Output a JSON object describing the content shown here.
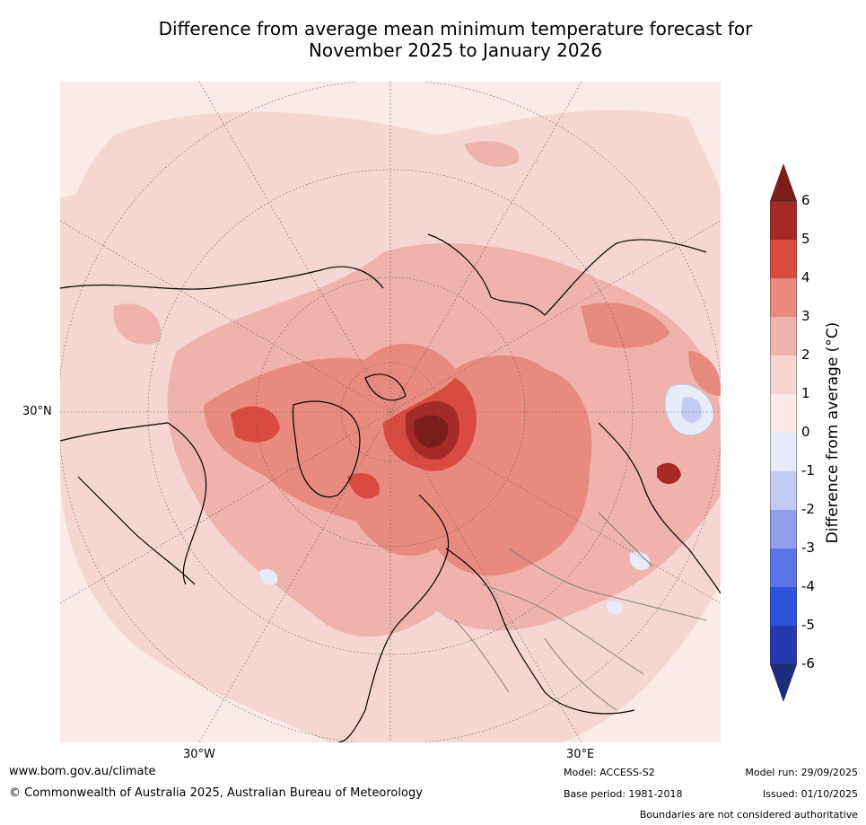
{
  "title": {
    "line1": "Difference from average mean minimum temperature forecast for",
    "line2": "November 2025 to January 2026"
  },
  "map": {
    "lat_label": "30°N",
    "lon_labels": [
      "30°W",
      "30°E"
    ],
    "projection": "north-polar-stereographic",
    "features": [
      "warm-anomaly-arctic",
      "strong-warm-anomaly-barents-sea",
      "warm-anomaly-northern-russia",
      "cool-anomaly-central-asia",
      "warm-hotspot-central-asia"
    ]
  },
  "colorbar": {
    "label": "Difference from average (°C)",
    "ticks": [
      "6",
      "5",
      "4",
      "3",
      "2",
      "1",
      "0",
      "-1",
      "-2",
      "-3",
      "-4",
      "-5",
      "-6"
    ],
    "colors": [
      "#7b1e1a",
      "#a52a25",
      "#d94b40",
      "#e88a80",
      "#f0b3ac",
      "#f5d6d2",
      "#fbeae7",
      "#e8ecfa",
      "#c3cbf2",
      "#8e9eeb",
      "#5b73e5",
      "#2f52dd",
      "#2438b0",
      "#1e2d7c"
    ]
  },
  "footer": {
    "website": "www.bom.gov.au/climate",
    "copyright": "© Commonwealth of Australia 2025, Australian Bureau of Meteorology",
    "model": "Model: ACCESS-S2",
    "base_period": "Base period: 1981-2018",
    "model_run": "Model run: 29/09/2025",
    "issued": "Issued: 01/10/2025",
    "disclaimer": "Boundaries are not considered authoritative"
  }
}
